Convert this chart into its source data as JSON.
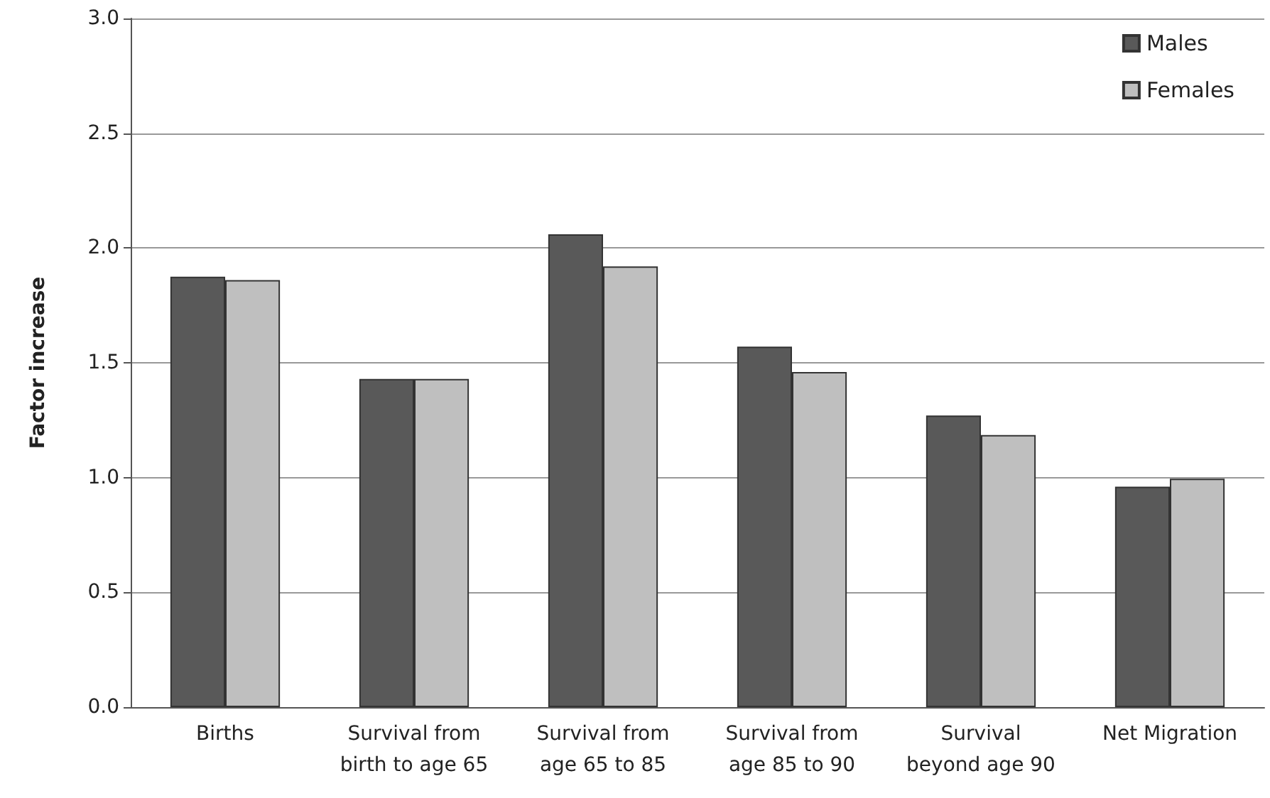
{
  "chart_data": {
    "type": "bar",
    "ylabel": "Factor increase",
    "categories": [
      "Births",
      "Survival from\nbirth to age 65",
      "Survival from\nage 65 to 85",
      "Survival from\nage 85 to 90",
      "Survival\nbeyond age 90",
      "Net Migration"
    ],
    "series": [
      {
        "name": "Males",
        "color": "#595959",
        "values": [
          1.875,
          1.43,
          2.06,
          1.57,
          1.27,
          0.96
        ]
      },
      {
        "name": "Females",
        "color": "#bfbfbf",
        "values": [
          1.86,
          1.43,
          1.92,
          1.46,
          1.185,
          0.995
        ]
      }
    ],
    "ylim": [
      0,
      3
    ],
    "yticks": [
      {
        "value": 0,
        "label": "0.0"
      },
      0.5,
      {
        "value": 1,
        "label": "1.0"
      },
      1.5,
      {
        "value": 2,
        "label": "2.0"
      },
      2.5,
      {
        "value": 3,
        "label": "3.0"
      }
    ],
    "grid": "y",
    "legend": "top right"
  }
}
